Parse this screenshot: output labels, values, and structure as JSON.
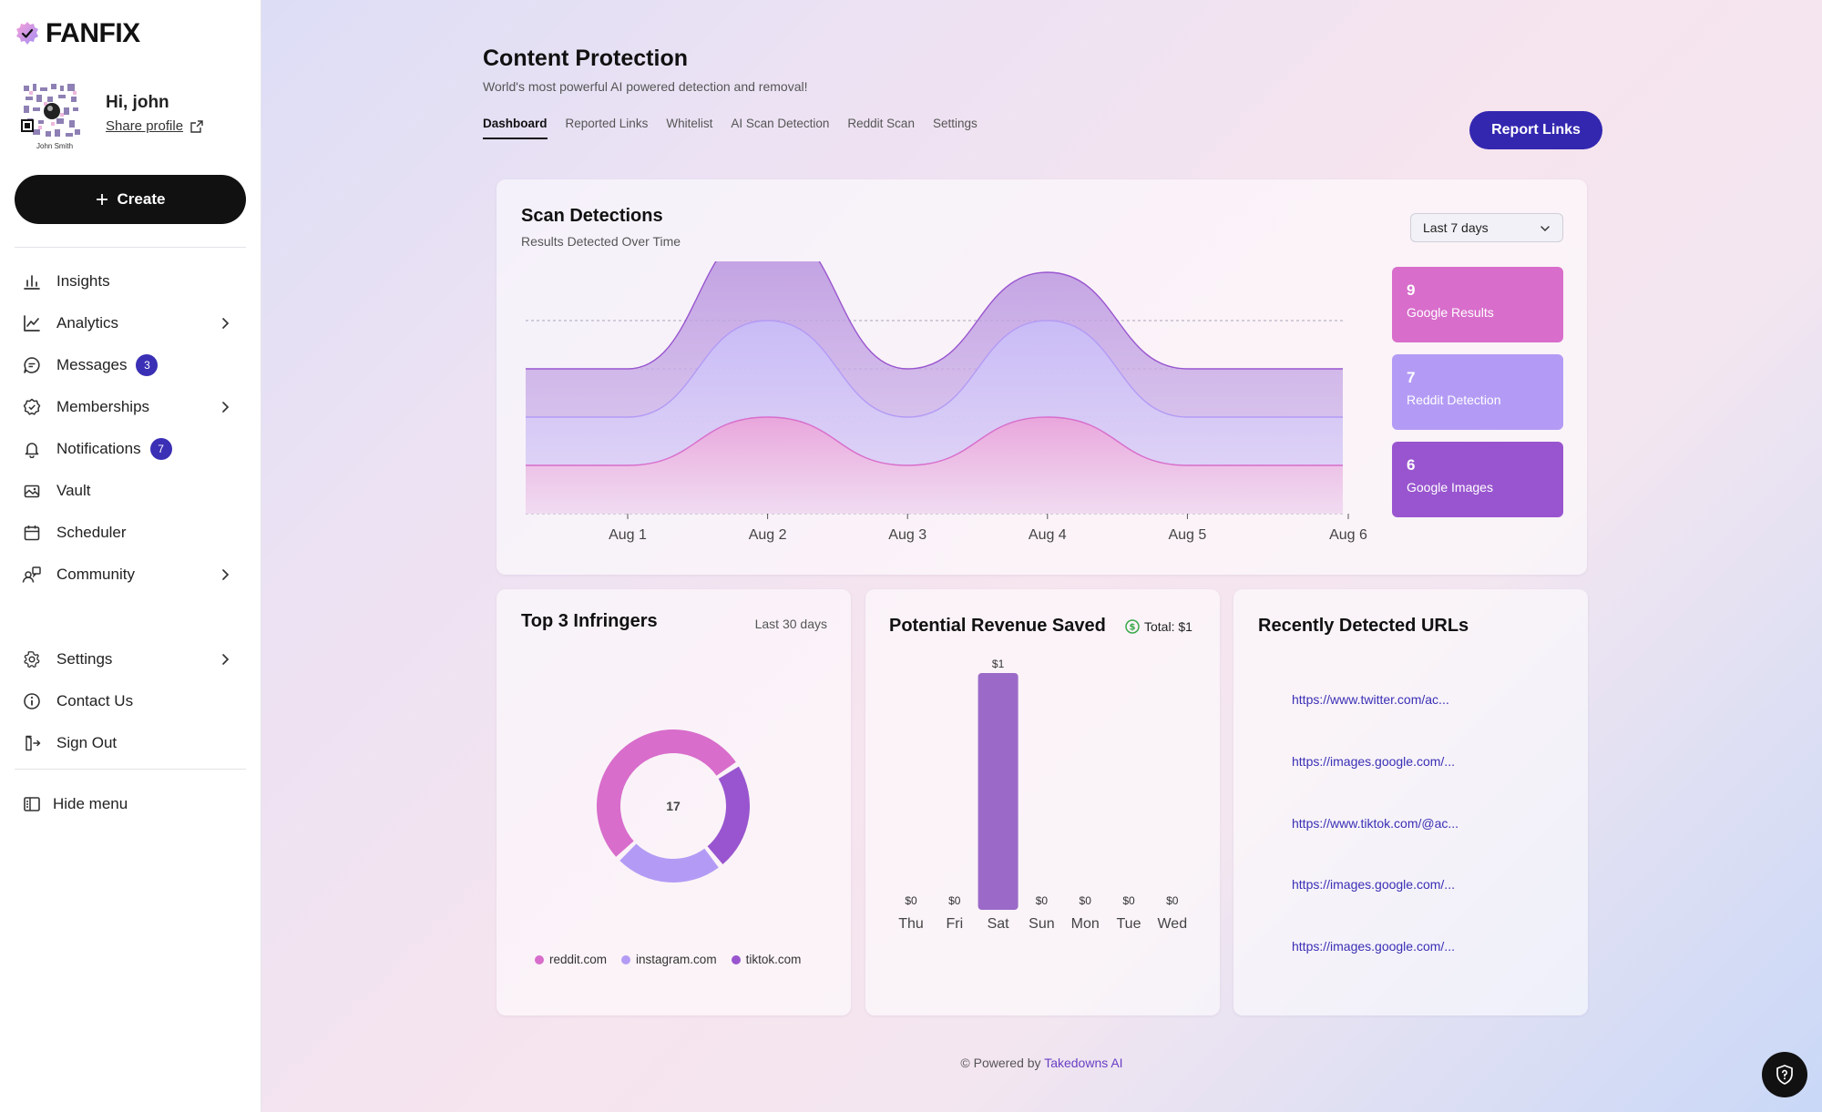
{
  "brand": {
    "name": "FANFIX"
  },
  "profile": {
    "greeting": "Hi, john",
    "share_label": "Share profile",
    "avatar_caption": "John Smith"
  },
  "sidebar": {
    "create_label": "Create",
    "items": [
      {
        "label": "Insights",
        "icon": "bar-chart-icon"
      },
      {
        "label": "Analytics",
        "icon": "line-chart-icon",
        "chevron": true
      },
      {
        "label": "Messages",
        "icon": "message-icon",
        "badge": "3"
      },
      {
        "label": "Memberships",
        "icon": "badge-check-icon",
        "chevron": true
      },
      {
        "label": "Notifications",
        "icon": "bell-icon",
        "badge": "7"
      },
      {
        "label": "Vault",
        "icon": "image-icon"
      },
      {
        "label": "Scheduler",
        "icon": "calendar-icon"
      },
      {
        "label": "Community",
        "icon": "users-icon",
        "chevron": true
      }
    ],
    "bottom_items": [
      {
        "label": "Settings",
        "icon": "gear-icon",
        "chevron": true
      },
      {
        "label": "Contact Us",
        "icon": "info-icon"
      },
      {
        "label": "Sign Out",
        "icon": "sign-out-icon"
      }
    ],
    "hide_menu_label": "Hide menu"
  },
  "main": {
    "title": "Content Protection",
    "subtitle": "World's most powerful AI powered detection and removal!",
    "tabs": [
      "Dashboard",
      "Reported Links",
      "Whitelist",
      "AI Scan Detection",
      "Reddit Scan",
      "Settings"
    ],
    "active_tab": "Dashboard",
    "report_button": "Report Links"
  },
  "scan": {
    "title": "Scan Detections",
    "subtitle": "Results Detected Over Time",
    "range": "Last 7 days",
    "stats": [
      {
        "value": "9",
        "label": "Google Results",
        "color": "#d86dcb"
      },
      {
        "value": "7",
        "label": "Reddit Detection",
        "color": "#b39bf5"
      },
      {
        "value": "6",
        "label": "Google Images",
        "color": "#9955cf"
      }
    ]
  },
  "infringers": {
    "title": "Top 3 Infringers",
    "range": "Last 30 days",
    "center_value": "17",
    "legend": [
      {
        "label": "reddit.com",
        "color": "#d86dcb"
      },
      {
        "label": "instagram.com",
        "color": "#b39bf5"
      },
      {
        "label": "tiktok.com",
        "color": "#9955cf"
      }
    ]
  },
  "revenue": {
    "title": "Potential Revenue Saved",
    "total_label": "Total: $1"
  },
  "recent": {
    "title": "Recently Detected URLs",
    "urls": [
      "https://www.twitter.com/ac...",
      "https://images.google.com/...",
      "https://www.tiktok.com/@ac...",
      "https://images.google.com/...",
      "https://images.google.com/..."
    ]
  },
  "footer": {
    "prefix": "© Powered by",
    "link": "Takedowns AI"
  },
  "chart_data": [
    {
      "type": "area",
      "title": "Scan Detections",
      "subtitle": "Results Detected Over Time",
      "categories": [
        "Aug 1",
        "Aug 2",
        "Aug 3",
        "Aug 4",
        "Aug 5",
        "Aug 6"
      ],
      "series": [
        {
          "name": "Google Results",
          "values": [
            0,
            1,
            0,
            0,
            0,
            0
          ],
          "color": "#9955cf"
        },
        {
          "name": "Reddit Detection",
          "values": [
            0,
            1,
            0,
            1,
            0,
            0
          ],
          "color": "#b39bf5"
        },
        {
          "name": "Google Images",
          "values": [
            0,
            1,
            0,
            1,
            0,
            0
          ],
          "color": "#d86dcb"
        }
      ],
      "stacked": true,
      "grid": true
    },
    {
      "type": "pie",
      "title": "Top 3 Infringers",
      "center_label": "17",
      "slices": [
        {
          "label": "reddit.com",
          "value": 9,
          "color": "#d86dcb"
        },
        {
          "label": "instagram.com",
          "value": 4,
          "color": "#b39bf5"
        },
        {
          "label": "tiktok.com",
          "value": 4,
          "color": "#9955cf"
        }
      ],
      "legend": "bottom"
    },
    {
      "type": "bar",
      "title": "Potential Revenue Saved",
      "categories": [
        "Thu",
        "Fri",
        "Sat",
        "Sun",
        "Mon",
        "Tue",
        "Wed"
      ],
      "values": [
        0,
        0,
        1,
        0,
        0,
        0,
        0
      ],
      "value_labels": [
        "$0",
        "$0",
        "$1",
        "$0",
        "$0",
        "$0",
        "$0"
      ],
      "color": "#9b6ac8"
    }
  ]
}
